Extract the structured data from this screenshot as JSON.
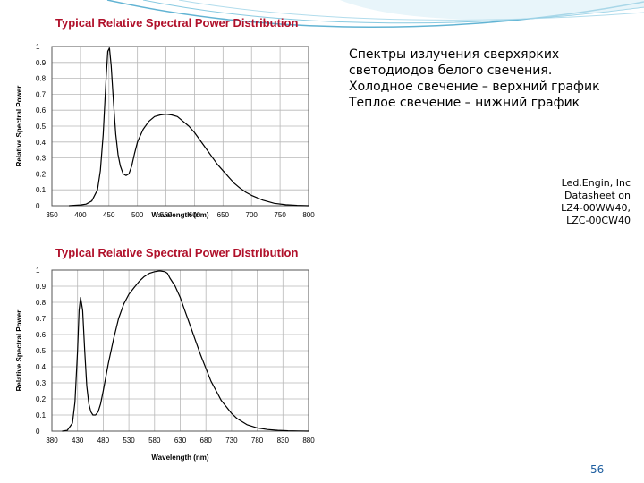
{
  "slide": {
    "description_lines": [
      "Спектры излучения сверхярких светодиодов белого свечения.",
      "Холодное свечение – верхний график",
      "Теплое свечение – нижний график"
    ],
    "source_lines": [
      "Led.Engin, Inc",
      "Datasheet on",
      "LZ4-00WW40,",
      "LZC-00CW40"
    ],
    "page_number": "56",
    "accent_color": "#3aa0c8",
    "title_color": "#b0102a"
  },
  "chart_data": [
    {
      "type": "line",
      "title": "Typical Relative Spectral Power Distribution",
      "xlabel": "Wavelength (nm)",
      "ylabel": "Relative Spectral Power",
      "xlim": [
        350,
        800
      ],
      "ylim": [
        0,
        1
      ],
      "x_ticks": [
        "350",
        "400",
        "450",
        "500",
        "550",
        "600",
        "650",
        "700",
        "750",
        "800"
      ],
      "y_ticks": [
        "0",
        "0.1",
        "0.2",
        "0.3",
        "0.4",
        "0.5",
        "0.6",
        "0.7",
        "0.8",
        "0.9",
        "1"
      ],
      "grid": true,
      "series": [
        {
          "x": [
            380,
            400,
            410,
            420,
            430,
            435,
            440,
            445,
            448,
            451,
            454,
            458,
            462,
            466,
            470,
            475,
            480,
            485,
            490,
            495,
            500,
            510,
            520,
            530,
            540,
            550,
            560,
            570,
            580,
            590,
            600,
            610,
            620,
            630,
            640,
            650,
            660,
            670,
            680,
            690,
            700,
            720,
            740,
            760,
            780,
            800
          ],
          "y": [
            0,
            0.005,
            0.01,
            0.03,
            0.1,
            0.22,
            0.45,
            0.8,
            0.97,
            0.99,
            0.88,
            0.65,
            0.45,
            0.32,
            0.25,
            0.2,
            0.19,
            0.2,
            0.25,
            0.33,
            0.4,
            0.48,
            0.53,
            0.56,
            0.57,
            0.575,
            0.57,
            0.56,
            0.53,
            0.5,
            0.46,
            0.41,
            0.36,
            0.31,
            0.26,
            0.22,
            0.18,
            0.14,
            0.11,
            0.085,
            0.065,
            0.035,
            0.015,
            0.006,
            0.002,
            0
          ]
        }
      ]
    },
    {
      "type": "line",
      "title": "Typical Relative Spectral Power Distribution",
      "xlabel": "Wavelength (nm)",
      "ylabel": "Relative Spectral Power",
      "xlim": [
        380,
        880
      ],
      "ylim": [
        0,
        1
      ],
      "x_ticks": [
        "380",
        "430",
        "480",
        "530",
        "580",
        "630",
        "680",
        "730",
        "780",
        "830",
        "880"
      ],
      "y_ticks": [
        "0",
        "0.1",
        "0.2",
        "0.3",
        "0.4",
        "0.5",
        "0.6",
        "0.7",
        "0.8",
        "0.9",
        "1"
      ],
      "grid": true,
      "series": [
        {
          "x": [
            400,
            410,
            420,
            425,
            430,
            433,
            436,
            440,
            444,
            448,
            452,
            456,
            460,
            465,
            470,
            475,
            480,
            490,
            500,
            510,
            520,
            530,
            540,
            550,
            560,
            570,
            580,
            590,
            600,
            605,
            610,
            620,
            630,
            640,
            650,
            660,
            670,
            680,
            690,
            700,
            710,
            720,
            730,
            740,
            750,
            760,
            780,
            800,
            820,
            840,
            860,
            880
          ],
          "y": [
            0,
            0.005,
            0.05,
            0.18,
            0.5,
            0.75,
            0.83,
            0.75,
            0.5,
            0.28,
            0.17,
            0.12,
            0.1,
            0.1,
            0.12,
            0.17,
            0.25,
            0.42,
            0.57,
            0.7,
            0.79,
            0.85,
            0.89,
            0.93,
            0.96,
            0.98,
            0.99,
            0.995,
            0.99,
            0.98,
            0.95,
            0.9,
            0.83,
            0.74,
            0.65,
            0.56,
            0.47,
            0.39,
            0.31,
            0.25,
            0.19,
            0.15,
            0.11,
            0.08,
            0.06,
            0.04,
            0.02,
            0.01,
            0.005,
            0.002,
            0.001,
            0
          ]
        }
      ]
    }
  ]
}
